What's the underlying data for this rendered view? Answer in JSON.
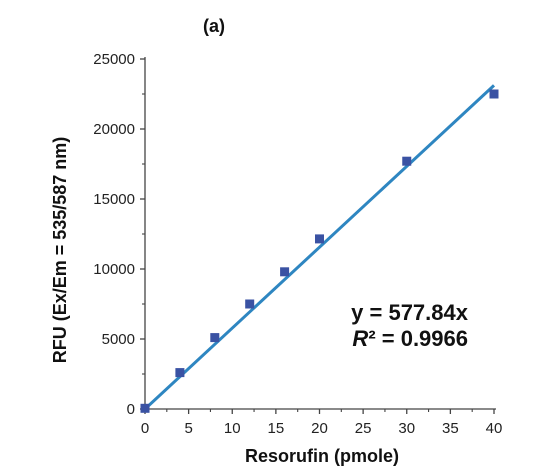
{
  "chart_data": {
    "type": "scatter",
    "panel_label": "(a)",
    "xlabel": "Resorufin (pmole)",
    "ylabel": "RFU (Ex/Em = 535/587 nm)",
    "xlim": [
      0,
      40
    ],
    "ylim": [
      0,
      25000
    ],
    "x_ticks": [
      0,
      5,
      10,
      15,
      20,
      25,
      30,
      35,
      40
    ],
    "y_ticks": [
      0,
      5000,
      10000,
      15000,
      20000,
      25000
    ],
    "grid": false,
    "series": [
      {
        "marker": "square",
        "color": "#3a52a3",
        "points": [
          {
            "x": 0,
            "y": 50
          },
          {
            "x": 4,
            "y": 2600
          },
          {
            "x": 8,
            "y": 5100
          },
          {
            "x": 12,
            "y": 7500
          },
          {
            "x": 16,
            "y": 9800
          },
          {
            "x": 20,
            "y": 12150
          },
          {
            "x": 30,
            "y": 17700
          },
          {
            "x": 40,
            "y": 22500
          }
        ]
      }
    ],
    "trendline": {
      "slope": 577.84,
      "intercept": 0,
      "x_range": [
        0,
        40
      ],
      "color": "#2e86c1"
    },
    "annotation": {
      "equation": "y = 577.84x",
      "r2_symbol": "R",
      "r2_rest": "² = 0.9966"
    }
  }
}
